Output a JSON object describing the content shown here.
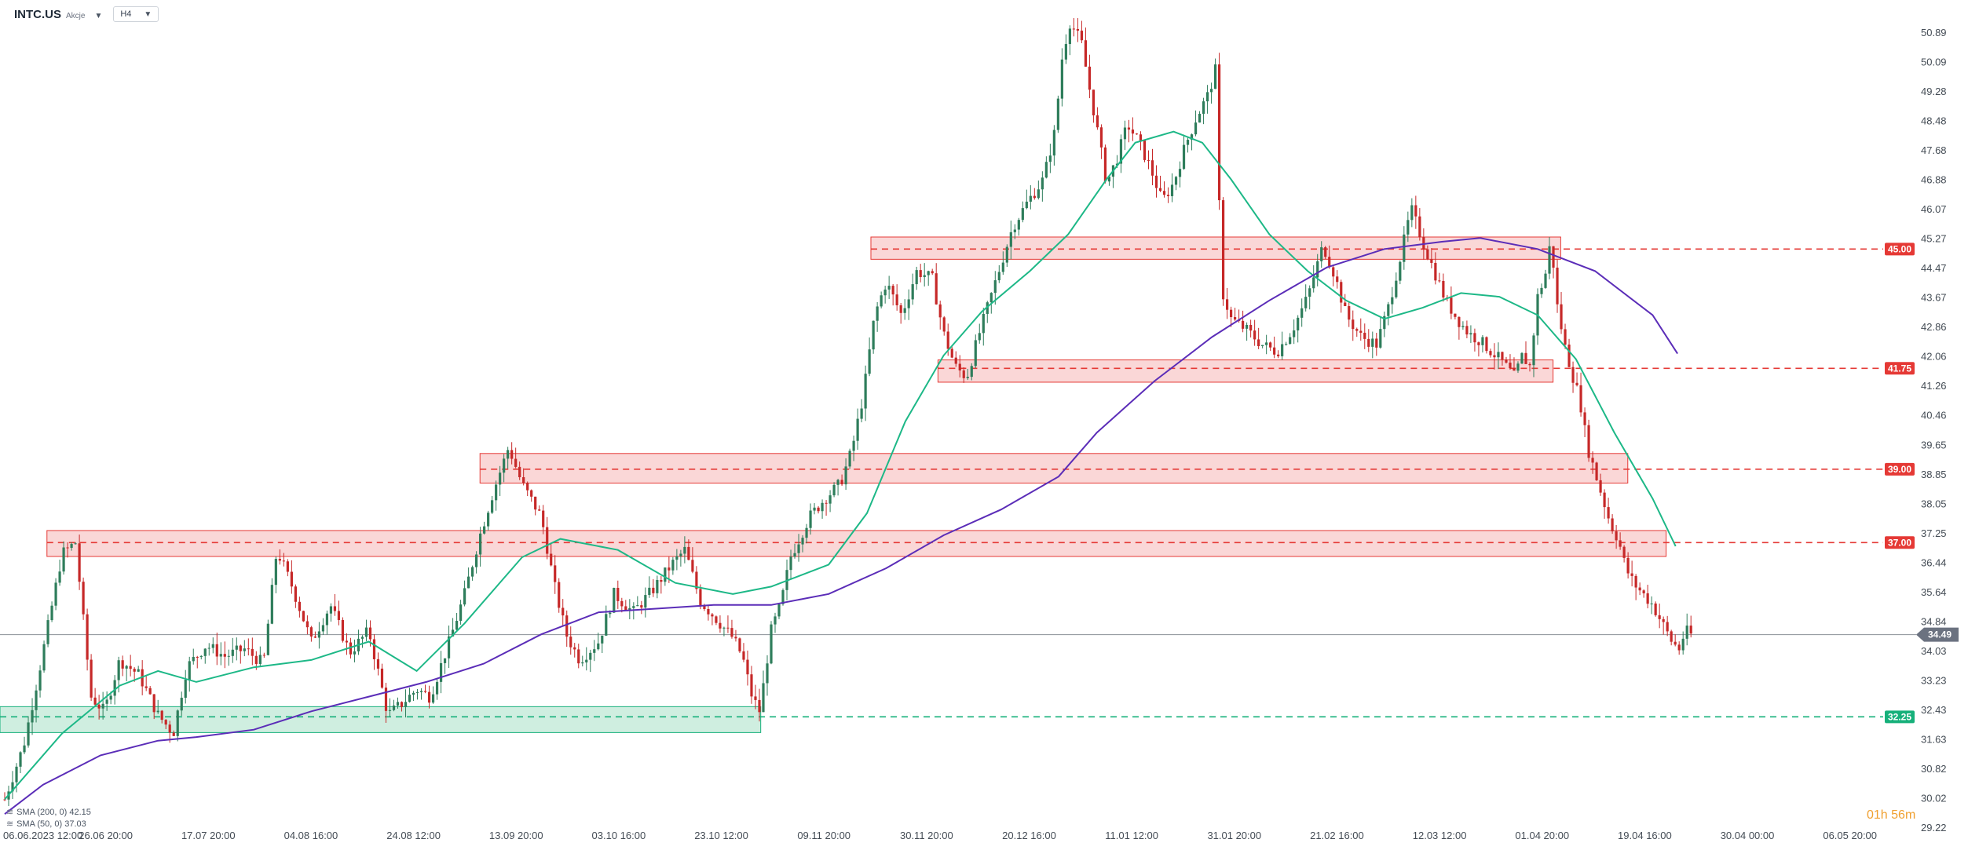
{
  "header": {
    "symbol": "INTC.US",
    "asset_type": "Akcje",
    "timeframe": "H4"
  },
  "indicators": [
    {
      "label": "SMA (200, 0)",
      "value": "42.15",
      "color": "#5b2db8"
    },
    {
      "label": "SMA (50, 0)",
      "value": "37.03",
      "color": "#1db887"
    }
  ],
  "countdown": "01h 56m",
  "colors": {
    "up": "#2e7d5b",
    "down": "#c62828",
    "resistance_fill": "#f8c9c9",
    "resistance_line": "#e53935",
    "support_fill": "#bfe8d6",
    "support_line": "#16b07a",
    "sma200": "#5b2db8",
    "sma50": "#1db887"
  },
  "chart_data": {
    "type": "candlestick",
    "y_ticks": [
      "50.89",
      "50.09",
      "49.28",
      "48.48",
      "47.68",
      "46.88",
      "46.07",
      "45.27",
      "44.47",
      "43.67",
      "42.86",
      "42.06",
      "41.26",
      "40.46",
      "39.65",
      "38.85",
      "38.05",
      "37.25",
      "36.44",
      "35.64",
      "34.84",
      "34.03",
      "33.23",
      "32.43",
      "31.63",
      "30.82",
      "30.02",
      "29.22"
    ],
    "x_ticks": [
      "06.06.2023 12:00",
      "26.06 20:00",
      "17.07 20:00",
      "04.08 16:00",
      "24.08 12:00",
      "13.09 20:00",
      "03.10 16:00",
      "23.10 12:00",
      "09.11 20:00",
      "30.11 20:00",
      "20.12 16:00",
      "11.01 12:00",
      "31.01 20:00",
      "21.02 16:00",
      "12.03 12:00",
      "01.04 20:00",
      "19.04 16:00",
      "30.04 00:00",
      "06.05 20:00"
    ],
    "ylim": [
      29.22,
      51.0
    ],
    "current_price": "34.49",
    "levels": [
      {
        "price": 45.0,
        "label": "45.00",
        "kind": "resistance",
        "zone": [
          44.85,
          45.2
        ],
        "zone_start": 0.4545,
        "zone_end": 0.8145
      },
      {
        "price": 41.75,
        "label": "41.75",
        "kind": "resistance",
        "zone": [
          41.5,
          41.85
        ],
        "zone_start": 0.4895,
        "zone_end": 0.8105
      },
      {
        "price": 39.0,
        "label": "39.00",
        "kind": "resistance",
        "zone": [
          38.75,
          39.3
        ],
        "zone_start": 0.2505,
        "zone_end": 0.8495
      },
      {
        "price": 37.0,
        "label": "37.00",
        "kind": "resistance",
        "zone": [
          36.75,
          37.2
        ],
        "zone_start": 0.0245,
        "zone_end": 0.8695
      },
      {
        "price": 32.25,
        "label": "32.25",
        "kind": "support",
        "zone": [
          31.95,
          32.4
        ],
        "zone_start": 0.0,
        "zone_end": 0.397
      }
    ],
    "price_path": [
      [
        0.0,
        30.0
      ],
      [
        0.01,
        31.5
      ],
      [
        0.018,
        33.5
      ],
      [
        0.03,
        36.7
      ],
      [
        0.037,
        37.0
      ],
      [
        0.045,
        32.8
      ],
      [
        0.052,
        32.4
      ],
      [
        0.06,
        33.8
      ],
      [
        0.07,
        33.4
      ],
      [
        0.08,
        32.3
      ],
      [
        0.088,
        31.8
      ],
      [
        0.095,
        33.6
      ],
      [
        0.105,
        34.2
      ],
      [
        0.115,
        33.9
      ],
      [
        0.125,
        34.1
      ],
      [
        0.135,
        33.7
      ],
      [
        0.142,
        36.8
      ],
      [
        0.15,
        35.8
      ],
      [
        0.16,
        34.3
      ],
      [
        0.17,
        35.3
      ],
      [
        0.18,
        34.0
      ],
      [
        0.19,
        34.6
      ],
      [
        0.2,
        32.3
      ],
      [
        0.207,
        32.6
      ],
      [
        0.215,
        33.0
      ],
      [
        0.222,
        32.8
      ],
      [
        0.232,
        34.3
      ],
      [
        0.24,
        35.6
      ],
      [
        0.248,
        37.2
      ],
      [
        0.255,
        38.4
      ],
      [
        0.263,
        39.6
      ],
      [
        0.27,
        38.6
      ],
      [
        0.28,
        37.7
      ],
      [
        0.287,
        35.8
      ],
      [
        0.293,
        34.5
      ],
      [
        0.3,
        33.8
      ],
      [
        0.31,
        34.3
      ],
      [
        0.318,
        35.6
      ],
      [
        0.328,
        35.1
      ],
      [
        0.338,
        35.7
      ],
      [
        0.348,
        36.4
      ],
      [
        0.355,
        36.8
      ],
      [
        0.363,
        35.4
      ],
      [
        0.37,
        35.0
      ],
      [
        0.38,
        34.4
      ],
      [
        0.385,
        33.9
      ],
      [
        0.39,
        32.8
      ],
      [
        0.394,
        32.4
      ],
      [
        0.4,
        34.6
      ],
      [
        0.405,
        35.3
      ],
      [
        0.41,
        36.6
      ],
      [
        0.42,
        37.7
      ],
      [
        0.428,
        38.2
      ],
      [
        0.436,
        38.6
      ],
      [
        0.442,
        39.5
      ],
      [
        0.448,
        41.0
      ],
      [
        0.454,
        43.2
      ],
      [
        0.46,
        44.1
      ],
      [
        0.468,
        43.2
      ],
      [
        0.476,
        44.4
      ],
      [
        0.484,
        44.2
      ],
      [
        0.49,
        42.7
      ],
      [
        0.496,
        41.8
      ],
      [
        0.502,
        41.5
      ],
      [
        0.508,
        42.6
      ],
      [
        0.514,
        43.6
      ],
      [
        0.52,
        44.6
      ],
      [
        0.526,
        45.6
      ],
      [
        0.534,
        46.3
      ],
      [
        0.542,
        46.9
      ],
      [
        0.548,
        48.2
      ],
      [
        0.552,
        50.3
      ],
      [
        0.556,
        51.2
      ],
      [
        0.562,
        50.6
      ],
      [
        0.566,
        49.4
      ],
      [
        0.57,
        48.3
      ],
      [
        0.575,
        46.8
      ],
      [
        0.58,
        47.4
      ],
      [
        0.586,
        48.4
      ],
      [
        0.592,
        47.9
      ],
      [
        0.598,
        47.2
      ],
      [
        0.604,
        46.3
      ],
      [
        0.61,
        46.8
      ],
      [
        0.616,
        47.8
      ],
      [
        0.622,
        48.6
      ],
      [
        0.628,
        49.2
      ],
      [
        0.632,
        49.9
      ],
      [
        0.635,
        43.9
      ],
      [
        0.64,
        43.1
      ],
      [
        0.648,
        42.8
      ],
      [
        0.656,
        42.4
      ],
      [
        0.664,
        42.2
      ],
      [
        0.672,
        42.8
      ],
      [
        0.68,
        43.7
      ],
      [
        0.688,
        45.1
      ],
      [
        0.694,
        44.3
      ],
      [
        0.7,
        43.2
      ],
      [
        0.708,
        42.6
      ],
      [
        0.716,
        42.4
      ],
      [
        0.722,
        43.4
      ],
      [
        0.728,
        44.7
      ],
      [
        0.734,
        46.1
      ],
      [
        0.74,
        45.2
      ],
      [
        0.746,
        44.4
      ],
      [
        0.752,
        43.6
      ],
      [
        0.758,
        43.1
      ],
      [
        0.764,
        42.7
      ],
      [
        0.77,
        42.5
      ],
      [
        0.776,
        42.2
      ],
      [
        0.782,
        41.9
      ],
      [
        0.788,
        41.5
      ],
      [
        0.792,
        42.1
      ],
      [
        0.796,
        41.8
      ],
      [
        0.8,
        43.7
      ],
      [
        0.804,
        44.3
      ],
      [
        0.807,
        45.3
      ],
      [
        0.81,
        43.5
      ],
      [
        0.814,
        42.4
      ],
      [
        0.818,
        41.6
      ],
      [
        0.822,
        40.9
      ],
      [
        0.826,
        39.6
      ],
      [
        0.83,
        38.9
      ],
      [
        0.834,
        38.2
      ],
      [
        0.838,
        37.5
      ],
      [
        0.842,
        37.1
      ],
      [
        0.846,
        36.3
      ],
      [
        0.85,
        35.9
      ],
      [
        0.855,
        35.6
      ],
      [
        0.86,
        35.3
      ],
      [
        0.865,
        34.8
      ],
      [
        0.87,
        34.3
      ],
      [
        0.874,
        34.1
      ],
      [
        0.877,
        34.6
      ],
      [
        0.88,
        34.49
      ]
    ],
    "sma50_path": [
      [
        0.0,
        30.0
      ],
      [
        0.03,
        31.8
      ],
      [
        0.06,
        33.1
      ],
      [
        0.08,
        33.5
      ],
      [
        0.1,
        33.2
      ],
      [
        0.13,
        33.6
      ],
      [
        0.16,
        33.8
      ],
      [
        0.19,
        34.3
      ],
      [
        0.215,
        33.5
      ],
      [
        0.24,
        34.8
      ],
      [
        0.27,
        36.6
      ],
      [
        0.29,
        37.1
      ],
      [
        0.32,
        36.8
      ],
      [
        0.35,
        35.9
      ],
      [
        0.38,
        35.6
      ],
      [
        0.4,
        35.8
      ],
      [
        0.43,
        36.4
      ],
      [
        0.45,
        37.8
      ],
      [
        0.47,
        40.3
      ],
      [
        0.49,
        42.1
      ],
      [
        0.51,
        43.3
      ],
      [
        0.535,
        44.4
      ],
      [
        0.555,
        45.4
      ],
      [
        0.575,
        46.9
      ],
      [
        0.59,
        47.9
      ],
      [
        0.61,
        48.2
      ],
      [
        0.625,
        47.9
      ],
      [
        0.64,
        46.9
      ],
      [
        0.66,
        45.4
      ],
      [
        0.68,
        44.4
      ],
      [
        0.7,
        43.6
      ],
      [
        0.72,
        43.1
      ],
      [
        0.74,
        43.4
      ],
      [
        0.76,
        43.8
      ],
      [
        0.78,
        43.7
      ],
      [
        0.8,
        43.2
      ],
      [
        0.82,
        42.0
      ],
      [
        0.84,
        40.0
      ],
      [
        0.86,
        38.2
      ],
      [
        0.872,
        36.9
      ]
    ],
    "sma200_path": [
      [
        0.0,
        29.6
      ],
      [
        0.02,
        30.4
      ],
      [
        0.05,
        31.2
      ],
      [
        0.08,
        31.6
      ],
      [
        0.1,
        31.7
      ],
      [
        0.13,
        31.9
      ],
      [
        0.16,
        32.4
      ],
      [
        0.19,
        32.8
      ],
      [
        0.22,
        33.2
      ],
      [
        0.25,
        33.7
      ],
      [
        0.28,
        34.5
      ],
      [
        0.31,
        35.1
      ],
      [
        0.34,
        35.2
      ],
      [
        0.37,
        35.3
      ],
      [
        0.4,
        35.3
      ],
      [
        0.43,
        35.6
      ],
      [
        0.46,
        36.3
      ],
      [
        0.49,
        37.2
      ],
      [
        0.52,
        37.9
      ],
      [
        0.55,
        38.8
      ],
      [
        0.57,
        40.0
      ],
      [
        0.6,
        41.4
      ],
      [
        0.63,
        42.6
      ],
      [
        0.66,
        43.6
      ],
      [
        0.69,
        44.5
      ],
      [
        0.72,
        45.0
      ],
      [
        0.75,
        45.2
      ],
      [
        0.77,
        45.3
      ],
      [
        0.8,
        45.0
      ],
      [
        0.83,
        44.4
      ],
      [
        0.86,
        43.2
      ],
      [
        0.873,
        42.15
      ]
    ]
  }
}
